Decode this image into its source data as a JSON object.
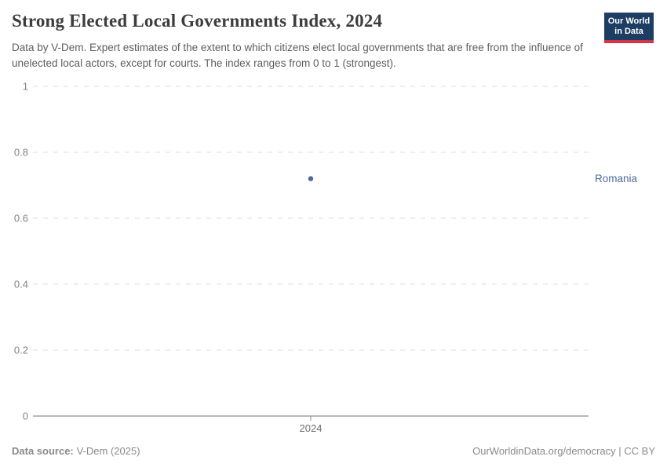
{
  "header": {
    "title": "Strong Elected Local Governments Index, 2024",
    "subtitle": "Data by V-Dem. Expert estimates of the extent to which citizens elect local governments that are free from the influence of unelected local actors, except for courts. The index ranges from 0 to 1 (strongest).",
    "logo": {
      "line1": "Our World",
      "line2": "in Data"
    }
  },
  "footer": {
    "source_label": "Data source:",
    "source_value": "V-Dem (2025)",
    "attribution": "OurWorldinData.org/democracy | CC BY"
  },
  "colors": {
    "accent_blue": "#4C6A9C",
    "logo_navy": "#1D3D63",
    "logo_red": "#D0354A",
    "grid": "#DCDCDC",
    "axis": "#8F8F8F",
    "y_tick_text": "#848484",
    "x_tick_text": "#6E6E6E",
    "title_text": "#3D3D3D",
    "footer_text": "#8A8A8A"
  },
  "chart_data": {
    "type": "scatter",
    "title": "Strong Elected Local Governments Index, 2024",
    "series": [
      {
        "name": "Romania",
        "x": [
          2024
        ],
        "values": [
          0.72
        ],
        "color": "#4C6A9C"
      }
    ],
    "xlabel": "",
    "ylabel": "",
    "x_ticks": [
      2024
    ],
    "y_ticks": [
      0,
      0.2,
      0.4,
      0.6,
      0.8,
      1
    ],
    "ylim": [
      0,
      1
    ],
    "grid": "horizontal-dashed",
    "legend_position": "right-entity-label"
  }
}
